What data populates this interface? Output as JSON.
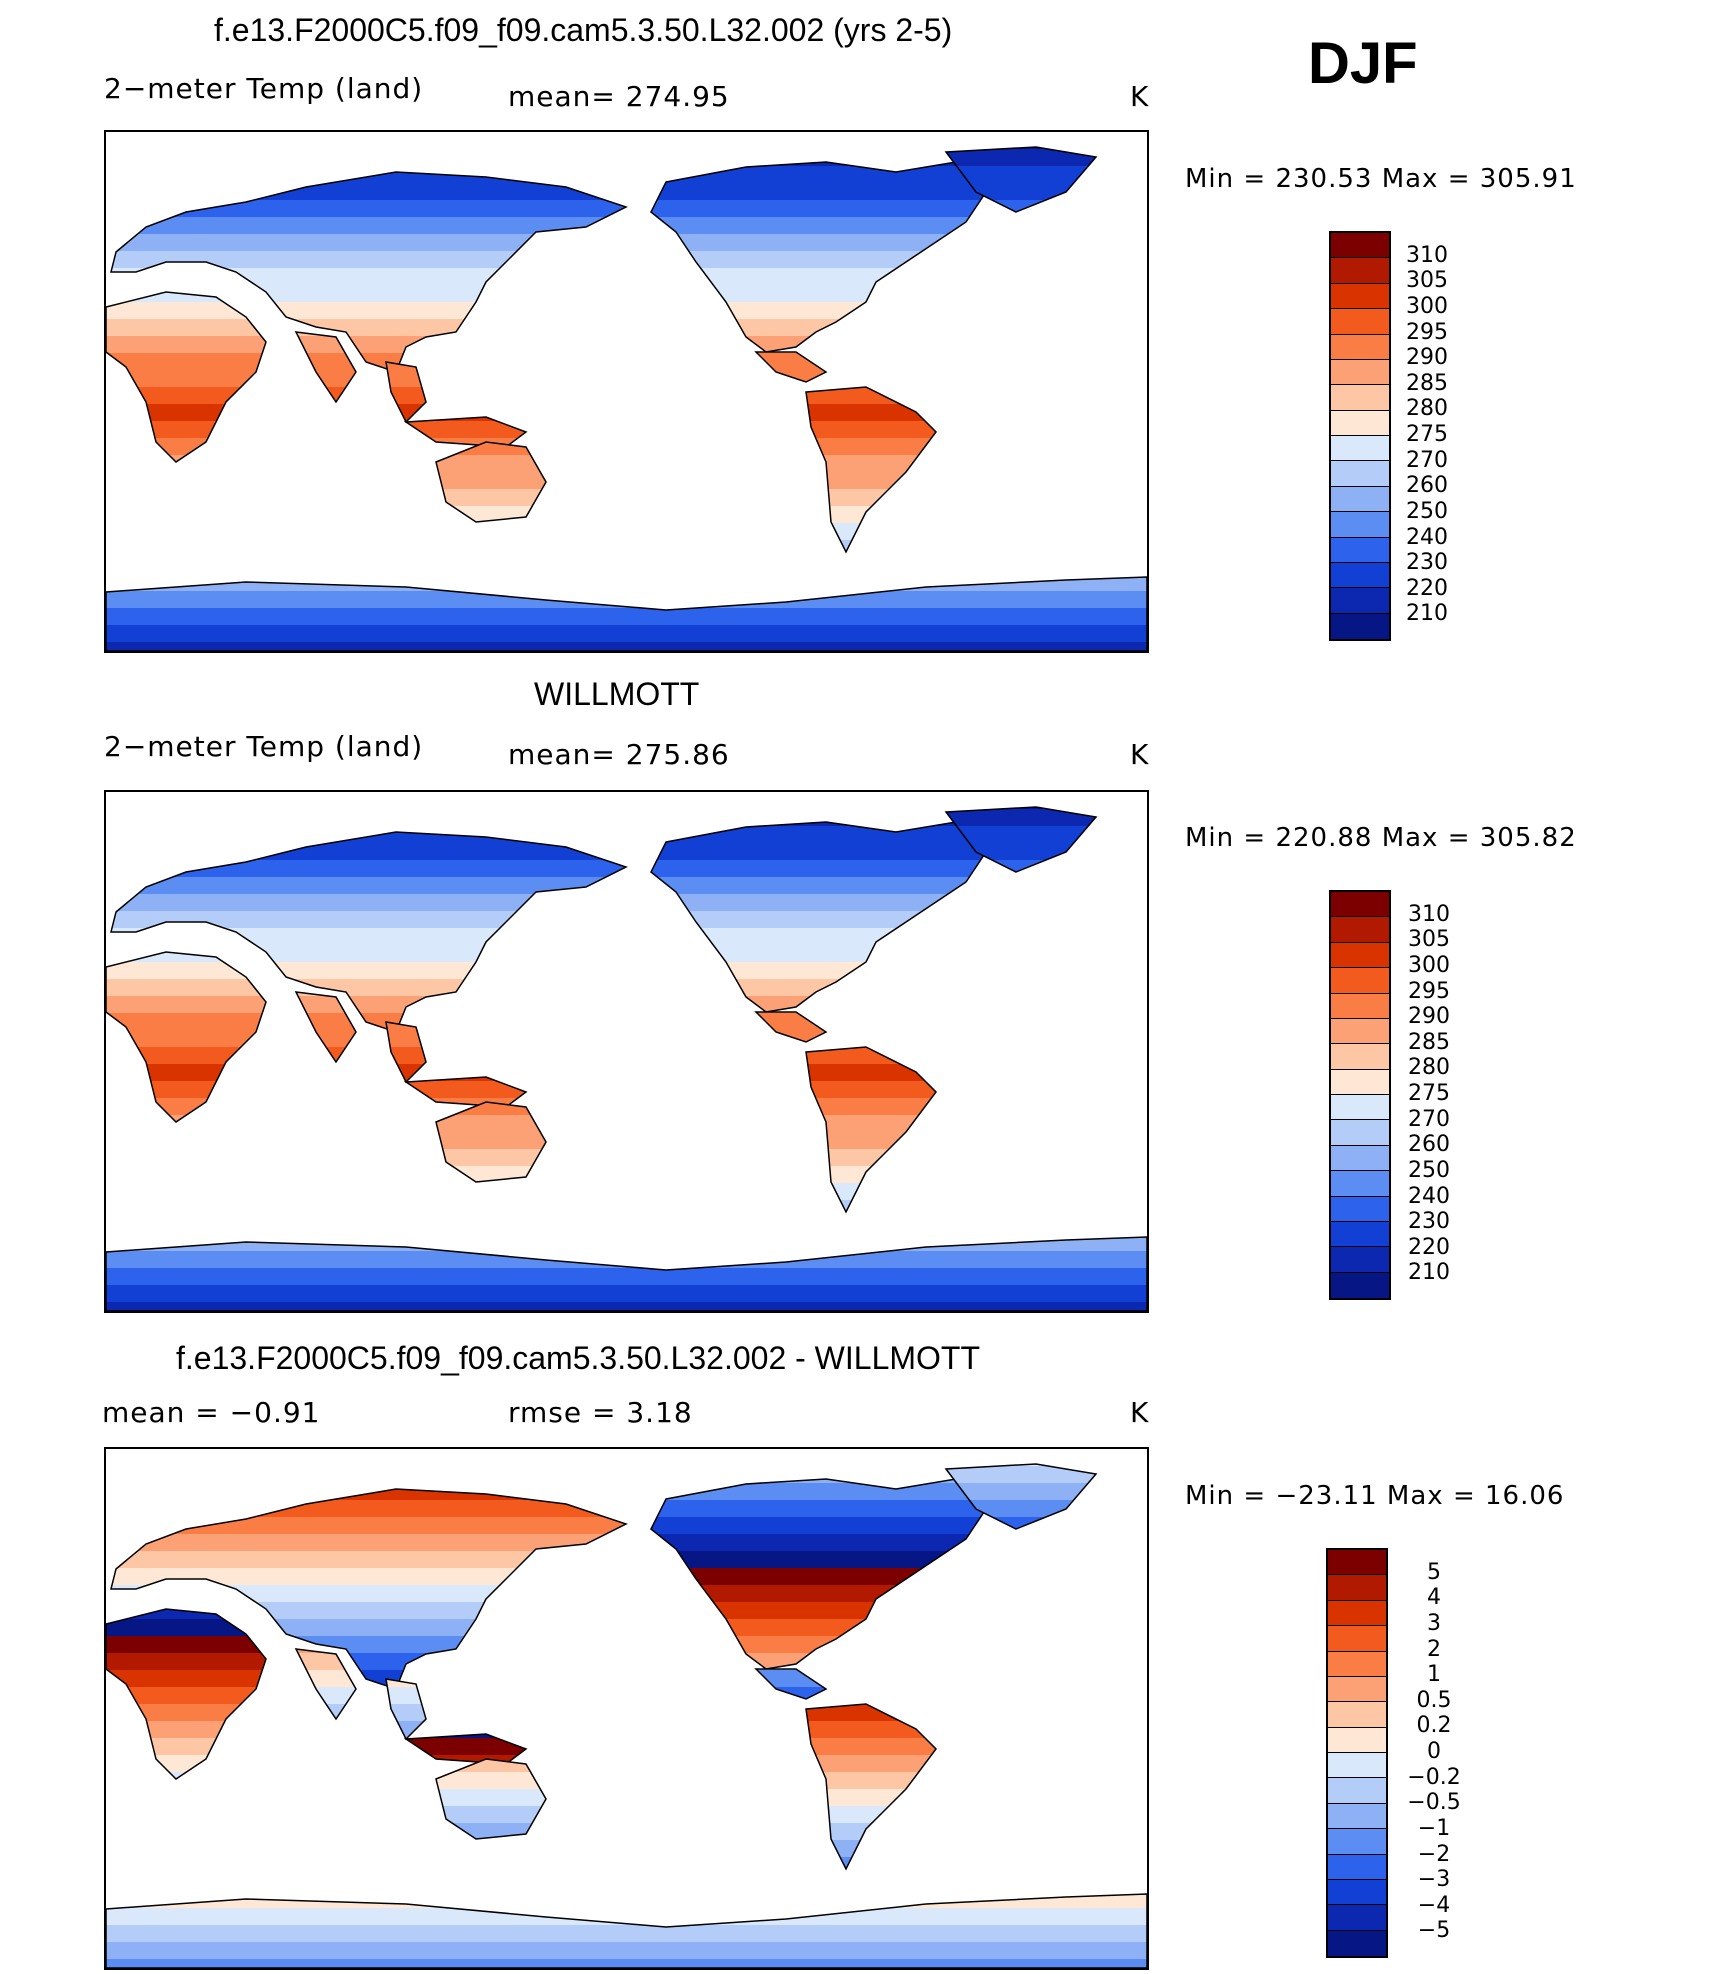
{
  "header": {
    "season": "DJF"
  },
  "panels": [
    {
      "id": "model",
      "title": "f.e13.F2000C5.f09_f09.cam5.3.50.L32.002 (yrs 2-5)",
      "left_label": "2−meter Temp (land)",
      "center_label": "mean= 274.95",
      "units": "K",
      "minmax": "Min = 230.53 Max = 305.91",
      "palette": "abs"
    },
    {
      "id": "obs",
      "title": "WILLMOTT",
      "left_label": "2−meter Temp (land)",
      "center_label": "mean= 275.86",
      "units": "K",
      "minmax": "Min = 220.88 Max = 305.82",
      "palette": "abs"
    },
    {
      "id": "diff",
      "title": "f.e13.F2000C5.f09_f09.cam5.3.50.L32.002 - WILLMOTT",
      "left_label": "mean =   −0.91",
      "center_label": "rmse =    3.18",
      "units": "K",
      "minmax": "Min = −23.11 Max =  16.06",
      "palette": "diff"
    }
  ],
  "colorbars": {
    "abs": {
      "labels": [
        "310",
        "305",
        "300",
        "295",
        "290",
        "285",
        "280",
        "275",
        "270",
        "260",
        "250",
        "240",
        "230",
        "220",
        "210"
      ],
      "colors": [
        "#7d0000",
        "#b21a00",
        "#d93300",
        "#f25a1e",
        "#fa7d45",
        "#fca176",
        "#fdc6a4",
        "#fee8d5",
        "#d9e8fb",
        "#b3cdf8",
        "#8eb1f5",
        "#5c8df2",
        "#2d62ec",
        "#1240d4",
        "#0c27b0",
        "#061785"
      ]
    },
    "diff": {
      "labels": [
        "5",
        "4",
        "3",
        "2",
        "1",
        "0.5",
        "0.2",
        "0",
        "−0.2",
        "−0.5",
        "−1",
        "−2",
        "−3",
        "−4",
        "−5"
      ],
      "colors": [
        "#7d0000",
        "#b21a00",
        "#d93300",
        "#f25a1e",
        "#fa7d45",
        "#fca176",
        "#fdc6a4",
        "#fee8d5",
        "#d9e8fb",
        "#b3cdf8",
        "#8eb1f5",
        "#5c8df2",
        "#2d62ec",
        "#1240d4",
        "#0c27b0",
        "#061785"
      ]
    }
  },
  "chart_data": [
    {
      "type": "heatmap",
      "title": "f.e13.F2000C5.f09_f09.cam5.3.50.L32.002 (yrs 2-5)",
      "variable": "2−meter Temp (land)",
      "units": "K",
      "mean": 274.95,
      "min": 230.53,
      "max": 305.91,
      "levels": [
        210,
        220,
        230,
        240,
        250,
        260,
        270,
        275,
        280,
        285,
        290,
        295,
        300,
        305,
        310
      ]
    },
    {
      "type": "heatmap",
      "title": "WILLMOTT",
      "variable": "2−meter Temp (land)",
      "units": "K",
      "mean": 275.86,
      "min": 220.88,
      "max": 305.82,
      "levels": [
        210,
        220,
        230,
        240,
        250,
        260,
        270,
        275,
        280,
        285,
        290,
        295,
        300,
        305,
        310
      ]
    },
    {
      "type": "heatmap",
      "title": "f.e13.F2000C5.f09_f09.cam5.3.50.L32.002 - WILLMOTT",
      "units": "K",
      "mean": -0.91,
      "rmse": 3.18,
      "min": -23.11,
      "max": 16.06,
      "levels": [
        -5,
        -4,
        -3,
        -2,
        -1,
        -0.5,
        -0.2,
        0,
        0.2,
        0.5,
        1,
        2,
        3,
        4,
        5
      ]
    }
  ]
}
